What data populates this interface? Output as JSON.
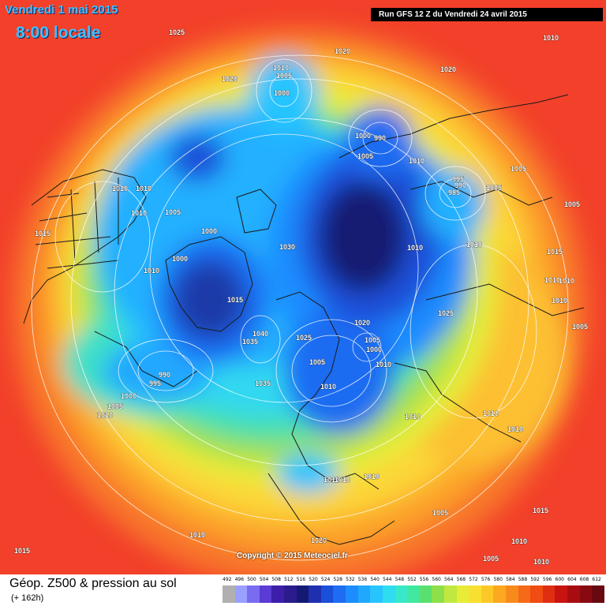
{
  "header": {
    "valid_date": "Vendredi 1 mai 2015",
    "valid_time": "8:00 locale",
    "run": "Run GFS 12 Z du Vendredi 24 avril 2015"
  },
  "footer": {
    "copyright": "Copyright © 2015 Meteociel.fr",
    "product": "Géop. Z500 & pression au sol",
    "lead_time": "(+ 162h)"
  },
  "colors": {
    "ocean_warm": "#f2402a",
    "land_borders": "#1a1a1a",
    "isobars": "#ffffff"
  },
  "scale": {
    "labels": [
      "492",
      "496",
      "500",
      "504",
      "508",
      "512",
      "516",
      "520",
      "524",
      "528",
      "532",
      "536",
      "540",
      "544",
      "548",
      "552",
      "556",
      "560",
      "564",
      "568",
      "572",
      "576",
      "580",
      "584",
      "588",
      "592",
      "596",
      "600",
      "604",
      "608",
      "612"
    ],
    "colors": [
      "#b0b0b0",
      "#9aa0ff",
      "#7a6cf0",
      "#5b3bd6",
      "#3d1eaa",
      "#2b1b8c",
      "#141a72",
      "#1e2fb0",
      "#1a4fd8",
      "#1e6cf2",
      "#1c8cff",
      "#20a8ff",
      "#28c4ff",
      "#30dcf0",
      "#38e8c8",
      "#40e8a0",
      "#5ae070",
      "#8ee04a",
      "#c0e840",
      "#e8ec38",
      "#f8e030",
      "#fcc828",
      "#fca820",
      "#f88a1c",
      "#f46a18",
      "#f04c14",
      "#e02e12",
      "#c81410",
      "#a80c10",
      "#880a10",
      "#680810"
    ]
  },
  "isobar_labels": [
    "1025",
    "1020",
    "1020",
    "1020",
    "1010",
    "1010",
    "1005",
    "1000",
    "1000",
    "990",
    "1005",
    "1010",
    "995",
    "990",
    "985",
    "1005",
    "1005",
    "1005",
    "1010",
    "1010",
    "1010",
    "1005",
    "1010",
    "1010",
    "1010",
    "1015",
    "1000",
    "1000",
    "1015",
    "1030",
    "1015",
    "1010",
    "1040",
    "1035",
    "1020",
    "1010",
    "1025",
    "1005",
    "1005",
    "1000",
    "1010",
    "990",
    "995",
    "1000",
    "1005",
    "1010",
    "1035",
    "1010",
    "1025",
    "1010",
    "1005",
    "1010",
    "1010",
    "1010",
    "1010",
    "1010",
    "1015",
    "1010",
    "1020",
    "1010",
    "1005",
    "1010",
    "1015",
    "1005",
    "1010"
  ]
}
